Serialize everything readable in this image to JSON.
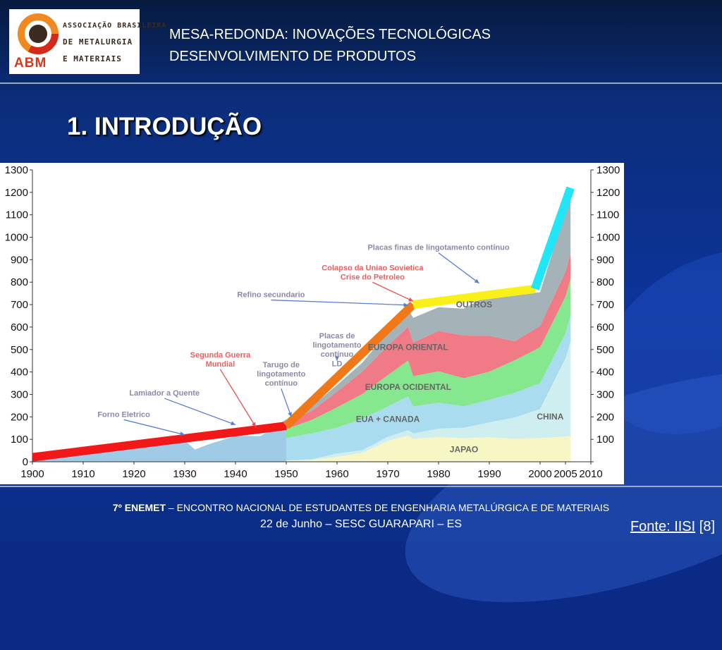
{
  "header": {
    "title_line1": "MESA-REDONDA: INOVAÇÕES TECNOLÓGICAS",
    "title_line2": "DESENVOLVIMENTO DE PRODUTOS",
    "logo_line1": "ASSOCIAÇÃO BRASILEIRA",
    "logo_line2": "DE METALURGIA",
    "logo_line3": "E MATERIAIS",
    "logo_abm": "ABM"
  },
  "section_title": "1. INTRODUÇÃO",
  "footer": {
    "edition": "7º",
    "event_short": "ENEMET",
    "event_long": " – ENCONTRO NACIONAL DE ESTUDANTES DE ENGENHARIA METALÚRGICA E DE MATERIAIS",
    "date_place": "22 de Junho – SESC GUARAPARI – ES",
    "source_label": "Fonte: IISI",
    "source_ref": " [8]"
  },
  "colors": {
    "japao": "#f6f7c4",
    "china": "#cfeef0",
    "eua_canada": "#a9dcee",
    "europa_ocidental": "#86e88e",
    "europa_oriental": "#f07a86",
    "pink_band": "#f8b3b3",
    "outros": "#a3b3b8",
    "early_area": "#9fcbe6",
    "trend_red": "#f01818",
    "trend_orange": "#f07818",
    "trend_yellow": "#f8f018",
    "trend_cyan": "#20e6f8",
    "annotation_text": "#8a8aa6",
    "arrow_red": "#e85050",
    "arrow_blue": "#5a7fd0",
    "label_red": "#e86060"
  },
  "chart_data": {
    "type": "area",
    "x_ticks": [
      "1900",
      "1910",
      "1920",
      "1930",
      "1940",
      "1950",
      "1960",
      "1970",
      "1980",
      "1990",
      "2000",
      "2005",
      "2010"
    ],
    "y_ticks": [
      "0",
      "100",
      "200",
      "300",
      "400",
      "500",
      "600",
      "700",
      "800",
      "900",
      "1000",
      "1100",
      "1200",
      "1300"
    ],
    "xlim": [
      1900,
      2010
    ],
    "ylim": [
      0,
      1300
    ],
    "years": [
      1950,
      1955,
      1960,
      1965,
      1970,
      1974,
      1975,
      1980,
      1985,
      1990,
      1995,
      2000,
      2005,
      2006
    ],
    "series": [
      {
        "name": "JAPAO",
        "values": [
          5,
          8,
          22,
          40,
          93,
          117,
          102,
          111,
          105,
          110,
          102,
          106,
          112,
          116
        ]
      },
      {
        "name": "CHINA",
        "values": [
          1,
          3,
          15,
          12,
          18,
          24,
          24,
          37,
          47,
          66,
          95,
          129,
          349,
          419
        ]
      },
      {
        "name": "EUA + CANADA",
        "values": [
          100,
          115,
          115,
          140,
          135,
          150,
          120,
          115,
          95,
          100,
          110,
          115,
          110,
          115
        ]
      },
      {
        "name": "EUROPA OCIDENTAL",
        "values": [
          40,
          60,
          90,
          110,
          140,
          160,
          135,
          140,
          125,
          125,
          145,
          160,
          165,
          165
        ]
      },
      {
        "name": "EUROPA ORIENTAL",
        "values": [
          30,
          40,
          70,
          100,
          130,
          150,
          150,
          180,
          190,
          160,
          85,
          95,
          110,
          115
        ]
      },
      {
        "name": "OUTROS",
        "values": [
          10,
          20,
          30,
          40,
          60,
          80,
          110,
          105,
          120,
          185,
          205,
          150,
          275,
          250
        ]
      }
    ],
    "early_years": [
      1900,
      1905,
      1910,
      1915,
      1920,
      1925,
      1930,
      1932,
      1935,
      1940,
      1945,
      1950
    ],
    "early_values": [
      28,
      40,
      60,
      75,
      72,
      90,
      95,
      55,
      80,
      115,
      115,
      190
    ],
    "trend_line": [
      {
        "year": 1900,
        "value": 20,
        "color": "red"
      },
      {
        "year": 1950,
        "value": 160,
        "color": "red"
      },
      {
        "year": 1975,
        "value": 700,
        "color": "orange"
      },
      {
        "year": 1999,
        "value": 770,
        "color": "yellow"
      },
      {
        "year": 2006,
        "value": 1220,
        "color": "cyan"
      }
    ],
    "region_labels": [
      {
        "text": "OUTROS",
        "year": 1987,
        "value": 688
      },
      {
        "text": "EUROPA ORIENTAL",
        "year": 1974,
        "value": 497
      },
      {
        "text": "EUROPA OCIDENTAL",
        "year": 1974,
        "value": 320
      },
      {
        "text": "EUA + CANADA",
        "year": 1970,
        "value": 178
      },
      {
        "text": "CHINA",
        "year": 2002,
        "value": 188
      },
      {
        "text": "JAPAO",
        "year": 1985,
        "value": 42
      }
    ],
    "annotations": [
      {
        "lines": [
          "Forno Eletrico"
        ],
        "year": 1918,
        "value": 200,
        "anchor": "middle",
        "to_year": 1930,
        "to_value": 120,
        "color": "gray"
      },
      {
        "lines": [
          "Lamiador a Quente"
        ],
        "year": 1926,
        "value": 295,
        "anchor": "middle",
        "to_year": 1940,
        "to_value": 165,
        "color": "gray"
      },
      {
        "lines": [
          "Segunda Guerra",
          "Mundial"
        ],
        "year": 1937,
        "value": 465,
        "anchor": "middle",
        "to_year": 1944,
        "to_value": 155,
        "color": "red"
      },
      {
        "lines": [
          "Tarugo de",
          "lingotamento",
          "contínuo"
        ],
        "year": 1949,
        "value": 420,
        "anchor": "middle",
        "to_year": 1951,
        "to_value": 200,
        "color": "gray"
      },
      {
        "lines": [
          "Placas de",
          "lingotamento",
          "contínuo"
        ],
        "year": 1960,
        "value": 550,
        "anchor": "middle",
        "to_year": 1960,
        "to_value": 450,
        "color": "gray"
      },
      {
        "lines": [
          "LD"
        ],
        "year": 1960,
        "value": 425,
        "anchor": "middle",
        "to_year": null,
        "to_value": null,
        "color": "gray"
      },
      {
        "lines": [
          "Refino secundario"
        ],
        "year": 1947,
        "value": 733,
        "anchor": "middle",
        "to_year": 1974,
        "to_value": 698,
        "color": "gray"
      },
      {
        "lines": [
          "Colapso da Uniao Sovietica",
          "Crise do Petroleo"
        ],
        "year": 1967,
        "value": 853,
        "anchor": "middle",
        "to_year": 1975,
        "to_value": 715,
        "color": "red"
      },
      {
        "lines": [
          "Placas finas de lingotamento contínuo"
        ],
        "year": 1980,
        "value": 943,
        "anchor": "middle",
        "to_year": 1988,
        "to_value": 795,
        "color": "gray"
      }
    ]
  }
}
